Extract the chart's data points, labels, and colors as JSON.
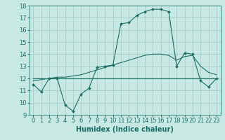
{
  "title": "",
  "xlabel": "Humidex (Indice chaleur)",
  "ylabel": "",
  "xlim": [
    -0.5,
    23.5
  ],
  "ylim": [
    9,
    18
  ],
  "yticks": [
    9,
    10,
    11,
    12,
    13,
    14,
    15,
    16,
    17,
    18
  ],
  "xticks": [
    0,
    1,
    2,
    3,
    4,
    5,
    6,
    7,
    8,
    9,
    10,
    11,
    12,
    13,
    14,
    15,
    16,
    17,
    18,
    19,
    20,
    21,
    22,
    23
  ],
  "bg_color": "#c8e8e4",
  "grid_color": "#a8ccc8",
  "line_color": "#1a6e64",
  "line1_x": [
    0,
    1,
    2,
    3,
    4,
    5,
    6,
    7,
    8,
    9,
    10,
    11,
    12,
    13,
    14,
    15,
    16,
    17,
    18,
    19,
    20,
    21,
    22,
    23
  ],
  "line1_y": [
    11.5,
    10.9,
    12.0,
    12.0,
    9.8,
    9.3,
    10.7,
    11.2,
    12.9,
    13.0,
    13.1,
    16.5,
    16.6,
    17.2,
    17.5,
    17.7,
    17.7,
    17.5,
    13.0,
    14.1,
    14.0,
    11.8,
    11.3,
    12.0
  ],
  "line2_x": [
    0,
    2,
    3,
    4,
    5,
    6,
    7,
    8,
    9,
    10,
    11,
    12,
    13,
    14,
    15,
    16,
    17,
    18,
    19,
    20,
    21,
    22,
    23
  ],
  "line2_y": [
    12.0,
    12.0,
    12.0,
    12.0,
    12.0,
    12.0,
    12.0,
    12.0,
    12.0,
    12.0,
    12.0,
    12.0,
    12.0,
    12.0,
    12.0,
    12.0,
    12.0,
    12.0,
    12.0,
    12.0,
    12.0,
    12.0,
    12.0
  ],
  "line3_x": [
    0,
    1,
    2,
    3,
    4,
    5,
    6,
    7,
    8,
    9,
    10,
    11,
    12,
    13,
    14,
    15,
    16,
    17,
    18,
    19,
    20,
    21,
    22,
    23
  ],
  "line3_y": [
    11.8,
    11.9,
    12.0,
    12.1,
    12.1,
    12.2,
    12.3,
    12.5,
    12.7,
    12.9,
    13.1,
    13.3,
    13.5,
    13.7,
    13.9,
    14.0,
    14.0,
    13.9,
    13.5,
    13.8,
    13.9,
    13.0,
    12.5,
    12.3
  ],
  "tick_fontsize": 6,
  "label_fontsize": 7
}
